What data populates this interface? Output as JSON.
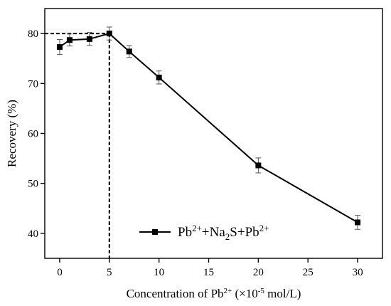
{
  "chart_data": {
    "type": "line",
    "xlabel": "Concentration of",
    "xlabel_ion": "Pb",
    "xlabel_ion_charge": "2+",
    "xlabel_unit_prefix": " (×10",
    "xlabel_unit_exp": "-5",
    "xlabel_unit_suffix": " mol/L)",
    "ylabel": "Recovery (%)",
    "xlim": [
      -1.5,
      32.5
    ],
    "ylim": [
      35,
      85
    ],
    "x_ticks": [
      0,
      5,
      10,
      15,
      20,
      25,
      30
    ],
    "y_ticks": [
      40,
      50,
      60,
      70,
      80
    ],
    "x_tick_labels": [
      "0",
      "5",
      "10",
      "15",
      "20",
      "25",
      "30"
    ],
    "y_tick_labels": [
      "40",
      "50",
      "60",
      "70",
      "80"
    ],
    "grid": false,
    "legend_position": "bottom-center",
    "series": [
      {
        "legend_parts": [
          {
            "t": "Pb"
          },
          {
            "t": "2+",
            "s": "sup"
          },
          {
            "t": "+Na"
          },
          {
            "t": "2",
            "s": "sub"
          },
          {
            "t": "S+Pb"
          },
          {
            "t": "2+",
            "s": "sup"
          }
        ],
        "marker": "square",
        "color": "#000000",
        "points": [
          {
            "x": 0,
            "y": 77.3,
            "err": 1.5
          },
          {
            "x": 1,
            "y": 78.7,
            "err": 1.2
          },
          {
            "x": 3,
            "y": 78.9,
            "err": 1.3
          },
          {
            "x": 5,
            "y": 80.0,
            "err": 1.3
          },
          {
            "x": 7,
            "y": 76.4,
            "err": 1.2
          },
          {
            "x": 10,
            "y": 71.2,
            "err": 1.3
          },
          {
            "x": 20,
            "y": 53.6,
            "err": 1.5
          },
          {
            "x": 30,
            "y": 42.2,
            "err": 1.4
          }
        ]
      }
    ],
    "reference_lines": {
      "horizontal_y": 80,
      "vertical_x": 5,
      "style": "dashed"
    }
  }
}
